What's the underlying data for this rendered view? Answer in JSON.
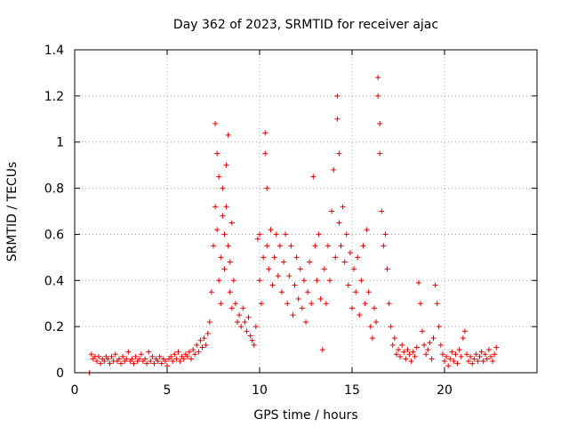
{
  "chart_data": {
    "type": "scatter",
    "title": "Day 362 of 2023, SRMTID for receiver ajac",
    "xlabel": "GPS time / hours",
    "ylabel": "SRMTID / TECUs",
    "xlim": [
      0,
      25
    ],
    "ylim": [
      0,
      1.4
    ],
    "grid": true,
    "marker": "plus",
    "color": "#e00000",
    "x_ticks": [
      "0",
      "5",
      "10",
      "15",
      "20"
    ],
    "y_ticks": [
      "0",
      "0.2",
      "0.4",
      "0.6",
      "0.8",
      "1",
      "1.2",
      "1.4"
    ],
    "series": [
      {
        "name": "ajac",
        "points": [
          [
            0.8,
            0.0
          ],
          [
            0.9,
            0.08
          ],
          [
            1.0,
            0.06
          ],
          [
            1.1,
            0.07
          ],
          [
            1.2,
            0.05
          ],
          [
            1.3,
            0.07
          ],
          [
            1.4,
            0.04
          ],
          [
            1.5,
            0.06
          ],
          [
            1.6,
            0.05
          ],
          [
            1.7,
            0.07
          ],
          [
            1.8,
            0.06
          ],
          [
            1.9,
            0.04
          ],
          [
            2.0,
            0.07
          ],
          [
            2.1,
            0.05
          ],
          [
            2.2,
            0.08
          ],
          [
            2.3,
            0.05
          ],
          [
            2.4,
            0.06
          ],
          [
            2.5,
            0.04
          ],
          [
            2.6,
            0.07
          ],
          [
            2.7,
            0.05
          ],
          [
            2.8,
            0.06
          ],
          [
            2.9,
            0.09
          ],
          [
            3.0,
            0.05
          ],
          [
            3.1,
            0.06
          ],
          [
            3.2,
            0.04
          ],
          [
            3.3,
            0.07
          ],
          [
            3.4,
            0.05
          ],
          [
            3.5,
            0.06
          ],
          [
            3.6,
            0.08
          ],
          [
            3.7,
            0.05
          ],
          [
            3.8,
            0.06
          ],
          [
            3.9,
            0.04
          ],
          [
            4.0,
            0.09
          ],
          [
            4.1,
            0.05
          ],
          [
            4.2,
            0.07
          ],
          [
            4.3,
            0.04
          ],
          [
            4.4,
            0.06
          ],
          [
            4.5,
            0.05
          ],
          [
            4.6,
            0.07
          ],
          [
            4.7,
            0.04
          ],
          [
            4.8,
            0.06
          ],
          [
            4.9,
            0.05
          ],
          [
            5.0,
            0.03
          ],
          [
            5.1,
            0.06
          ],
          [
            5.2,
            0.07
          ],
          [
            5.3,
            0.05
          ],
          [
            5.4,
            0.08
          ],
          [
            5.5,
            0.06
          ],
          [
            5.6,
            0.09
          ],
          [
            5.7,
            0.05
          ],
          [
            5.8,
            0.07
          ],
          [
            5.9,
            0.06
          ],
          [
            6.0,
            0.08
          ],
          [
            6.1,
            0.07
          ],
          [
            6.2,
            0.09
          ],
          [
            6.3,
            0.06
          ],
          [
            6.4,
            0.1
          ],
          [
            6.5,
            0.08
          ],
          [
            6.6,
            0.12
          ],
          [
            6.7,
            0.09
          ],
          [
            6.8,
            0.14
          ],
          [
            6.9,
            0.11
          ],
          [
            7.0,
            0.15
          ],
          [
            7.1,
            0.12
          ],
          [
            7.2,
            0.17
          ],
          [
            7.3,
            0.22
          ],
          [
            7.4,
            0.35
          ],
          [
            7.5,
            0.55
          ],
          [
            7.6,
            0.72
          ],
          [
            7.6,
            1.08
          ],
          [
            7.7,
            0.95
          ],
          [
            7.7,
            0.62
          ],
          [
            7.8,
            0.85
          ],
          [
            7.8,
            0.4
          ],
          [
            7.9,
            0.5
          ],
          [
            7.9,
            0.3
          ],
          [
            8.0,
            0.68
          ],
          [
            8.0,
            0.8
          ],
          [
            8.1,
            0.45
          ],
          [
            8.1,
            0.6
          ],
          [
            8.2,
            0.72
          ],
          [
            8.2,
            0.9
          ],
          [
            8.3,
            1.03
          ],
          [
            8.3,
            0.55
          ],
          [
            8.4,
            0.35
          ],
          [
            8.4,
            0.48
          ],
          [
            8.5,
            0.65
          ],
          [
            8.5,
            0.28
          ],
          [
            8.6,
            0.4
          ],
          [
            8.7,
            0.3
          ],
          [
            8.8,
            0.22
          ],
          [
            8.9,
            0.25
          ],
          [
            9.0,
            0.2
          ],
          [
            9.1,
            0.28
          ],
          [
            9.2,
            0.22
          ],
          [
            9.3,
            0.18
          ],
          [
            9.4,
            0.24
          ],
          [
            9.5,
            0.16
          ],
          [
            9.6,
            0.14
          ],
          [
            9.7,
            0.12
          ],
          [
            9.8,
            0.2
          ],
          [
            9.9,
            0.58
          ],
          [
            10.0,
            0.4
          ],
          [
            10.0,
            0.6
          ],
          [
            10.1,
            0.3
          ],
          [
            10.2,
            0.5
          ],
          [
            10.3,
            1.04
          ],
          [
            10.3,
            0.95
          ],
          [
            10.4,
            0.8
          ],
          [
            10.4,
            0.55
          ],
          [
            10.5,
            0.45
          ],
          [
            10.6,
            0.62
          ],
          [
            10.7,
            0.38
          ],
          [
            10.8,
            0.5
          ],
          [
            10.9,
            0.6
          ],
          [
            11.0,
            0.42
          ],
          [
            11.1,
            0.55
          ],
          [
            11.2,
            0.35
          ],
          [
            11.3,
            0.48
          ],
          [
            11.4,
            0.6
          ],
          [
            11.5,
            0.3
          ],
          [
            11.6,
            0.42
          ],
          [
            11.7,
            0.55
          ],
          [
            11.8,
            0.25
          ],
          [
            11.9,
            0.38
          ],
          [
            12.0,
            0.5
          ],
          [
            12.1,
            0.32
          ],
          [
            12.2,
            0.45
          ],
          [
            12.3,
            0.28
          ],
          [
            12.4,
            0.4
          ],
          [
            12.5,
            0.22
          ],
          [
            12.6,
            0.35
          ],
          [
            12.7,
            0.48
          ],
          [
            12.8,
            0.3
          ],
          [
            12.9,
            0.85
          ],
          [
            13.0,
            0.55
          ],
          [
            13.1,
            0.4
          ],
          [
            13.2,
            0.6
          ],
          [
            13.3,
            0.32
          ],
          [
            13.4,
            0.1
          ],
          [
            13.5,
            0.45
          ],
          [
            13.6,
            0.3
          ],
          [
            13.7,
            0.55
          ],
          [
            13.8,
            0.4
          ],
          [
            13.9,
            0.7
          ],
          [
            14.0,
            0.88
          ],
          [
            14.1,
            0.5
          ],
          [
            14.2,
            1.2
          ],
          [
            14.2,
            1.1
          ],
          [
            14.3,
            0.95
          ],
          [
            14.3,
            0.65
          ],
          [
            14.4,
            0.55
          ],
          [
            14.5,
            0.72
          ],
          [
            14.6,
            0.48
          ],
          [
            14.7,
            0.6
          ],
          [
            14.8,
            0.38
          ],
          [
            14.9,
            0.52
          ],
          [
            15.0,
            0.28
          ],
          [
            15.1,
            0.45
          ],
          [
            15.2,
            0.35
          ],
          [
            15.3,
            0.5
          ],
          [
            15.4,
            0.25
          ],
          [
            15.5,
            0.4
          ],
          [
            15.6,
            0.55
          ],
          [
            15.7,
            0.3
          ],
          [
            15.8,
            0.62
          ],
          [
            15.9,
            0.35
          ],
          [
            16.0,
            0.2
          ],
          [
            16.1,
            0.15
          ],
          [
            16.2,
            0.28
          ],
          [
            16.3,
            0.22
          ],
          [
            16.4,
            1.28
          ],
          [
            16.4,
            1.2
          ],
          [
            16.5,
            1.08
          ],
          [
            16.5,
            0.95
          ],
          [
            16.6,
            0.7
          ],
          [
            16.7,
            0.55
          ],
          [
            16.8,
            0.6
          ],
          [
            16.9,
            0.45
          ],
          [
            17.0,
            0.3
          ],
          [
            17.1,
            0.2
          ],
          [
            17.2,
            0.12
          ],
          [
            17.3,
            0.15
          ],
          [
            17.4,
            0.08
          ],
          [
            17.5,
            0.1
          ],
          [
            17.6,
            0.07
          ],
          [
            17.7,
            0.12
          ],
          [
            17.8,
            0.09
          ],
          [
            17.9,
            0.06
          ],
          [
            18.0,
            0.1
          ],
          [
            18.1,
            0.08
          ],
          [
            18.2,
            0.05
          ],
          [
            18.3,
            0.09
          ],
          [
            18.4,
            0.07
          ],
          [
            18.5,
            0.11
          ],
          [
            18.6,
            0.39
          ],
          [
            18.7,
            0.3
          ],
          [
            18.8,
            0.18
          ],
          [
            18.9,
            0.12
          ],
          [
            19.0,
            0.08
          ],
          [
            19.1,
            0.1
          ],
          [
            19.2,
            0.13
          ],
          [
            19.3,
            0.06
          ],
          [
            19.4,
            0.15
          ],
          [
            19.5,
            0.38
          ],
          [
            19.6,
            0.3
          ],
          [
            19.7,
            0.2
          ],
          [
            19.8,
            0.12
          ],
          [
            19.9,
            0.08
          ],
          [
            20.0,
            0.05
          ],
          [
            20.1,
            0.07
          ],
          [
            20.2,
            0.03
          ],
          [
            20.3,
            0.06
          ],
          [
            20.4,
            0.09
          ],
          [
            20.5,
            0.05
          ],
          [
            20.6,
            0.08
          ],
          [
            20.7,
            0.04
          ],
          [
            20.8,
            0.1
          ],
          [
            20.9,
            0.07
          ],
          [
            21.0,
            0.15
          ],
          [
            21.1,
            0.18
          ],
          [
            21.2,
            0.08
          ],
          [
            21.3,
            0.05
          ],
          [
            21.4,
            0.07
          ],
          [
            21.5,
            0.04
          ],
          [
            21.6,
            0.06
          ],
          [
            21.7,
            0.08
          ],
          [
            21.8,
            0.05
          ],
          [
            21.9,
            0.07
          ],
          [
            22.0,
            0.09
          ],
          [
            22.1,
            0.05
          ],
          [
            22.2,
            0.08
          ],
          [
            22.3,
            0.06
          ],
          [
            22.4,
            0.1
          ],
          [
            22.5,
            0.07
          ],
          [
            22.6,
            0.05
          ],
          [
            22.7,
            0.08
          ],
          [
            22.8,
            0.11
          ]
        ]
      }
    ]
  }
}
